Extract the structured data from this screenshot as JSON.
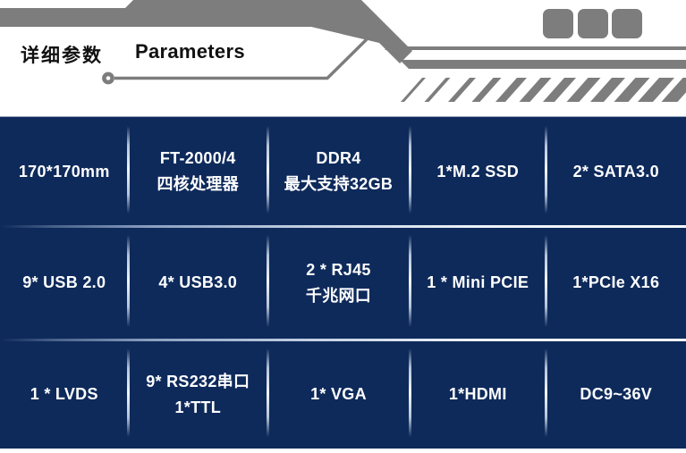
{
  "header": {
    "title_zh": "详细参数",
    "title_en": "Parameters",
    "decor": {
      "squares_count": 3,
      "slashes_count": 12
    }
  },
  "colors": {
    "panel_navy": "#0e2a5b",
    "decor_gray": "#7d7d7d",
    "divider_light": "#eef3fa",
    "cell_text": "#ffffff",
    "header_text": "#111111"
  },
  "spec_table": {
    "rows": [
      [
        [
          "170*170mm"
        ],
        [
          "FT-2000/4",
          "四核处理器"
        ],
        [
          "DDR4",
          "最大支持32GB"
        ],
        [
          "1*M.2 SSD"
        ],
        [
          "2* SATA3.0"
        ]
      ],
      [
        [
          "9* USB 2.0"
        ],
        [
          "4* USB3.0"
        ],
        [
          "2 * RJ45",
          "千兆网口"
        ],
        [
          "1 * Mini PCIE"
        ],
        [
          "1*PCIe X16"
        ]
      ],
      [
        [
          "1 * LVDS"
        ],
        [
          "9* RS232串口",
          "1*TTL"
        ],
        [
          "1* VGA"
        ],
        [
          "1*HDMI"
        ],
        [
          "DC9~36V"
        ]
      ]
    ]
  }
}
